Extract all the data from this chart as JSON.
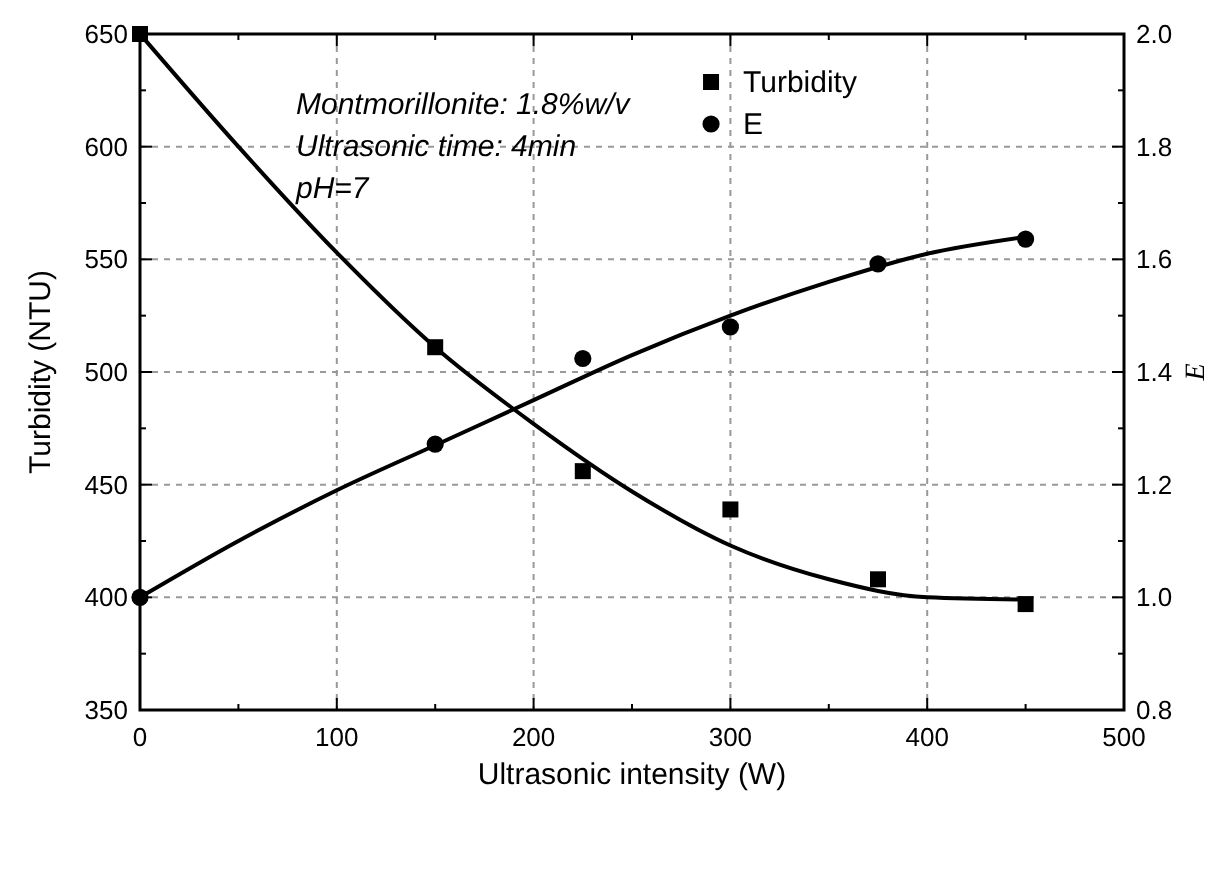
{
  "chart_data": {
    "type": "scatter",
    "xlabel": "Ultrasonic intensity (W)",
    "ylabel": "Turbidity (NTU)",
    "y2label": "E",
    "xlim": [
      0,
      500
    ],
    "xticks": [
      0,
      100,
      200,
      300,
      400,
      500
    ],
    "ylim": [
      350,
      650
    ],
    "yticks": [
      350,
      400,
      450,
      500,
      550,
      600,
      650
    ],
    "y2lim": [
      0.8,
      2.0
    ],
    "y2ticks": [
      {
        "value": 0.8,
        "label": "0.8"
      },
      {
        "value": 1.0,
        "label": "1.0"
      },
      {
        "value": 1.2,
        "label": "1.2"
      },
      {
        "value": 1.4,
        "label": "1.4"
      },
      {
        "value": 1.6,
        "label": "1.6"
      },
      {
        "value": 1.8,
        "label": "1.8"
      },
      {
        "value": 2.0,
        "label": "2.0"
      }
    ],
    "grid": true,
    "legend": "top right",
    "annotations": [
      "Montmorillonite: 1.8%w/v",
      "Ultrasonic time: 4min",
      "pH=7"
    ],
    "series": [
      {
        "name": "Turbidity",
        "marker": "square",
        "color": "#000000",
        "x": [
          0,
          150,
          225,
          300,
          375,
          450
        ],
        "values": [
          650,
          511,
          456,
          439,
          408,
          397
        ]
      },
      {
        "name": "E",
        "marker": "circle",
        "axis": "y2",
        "color": "#000000",
        "x": [
          0,
          150,
          225,
          300,
          375,
          450
        ],
        "values": [
          1.0,
          1.272,
          1.424,
          1.48,
          1.592,
          1.636
        ]
      },
      {
        "type": "line",
        "color": "#000000",
        "x": [
          0,
          50,
          100,
          150,
          200,
          250,
          300,
          350,
          400,
          450
        ],
        "values": [
          650,
          600,
          553,
          511,
          477,
          447,
          423,
          408,
          400,
          399
        ]
      },
      {
        "type": "line",
        "axis": "y2",
        "color": "#000000",
        "x": [
          0,
          50,
          100,
          150,
          200,
          250,
          300,
          350,
          400,
          450
        ],
        "values": [
          1.0,
          1.1,
          1.19,
          1.27,
          1.35,
          1.43,
          1.5,
          1.56,
          1.61,
          1.64
        ]
      }
    ]
  }
}
